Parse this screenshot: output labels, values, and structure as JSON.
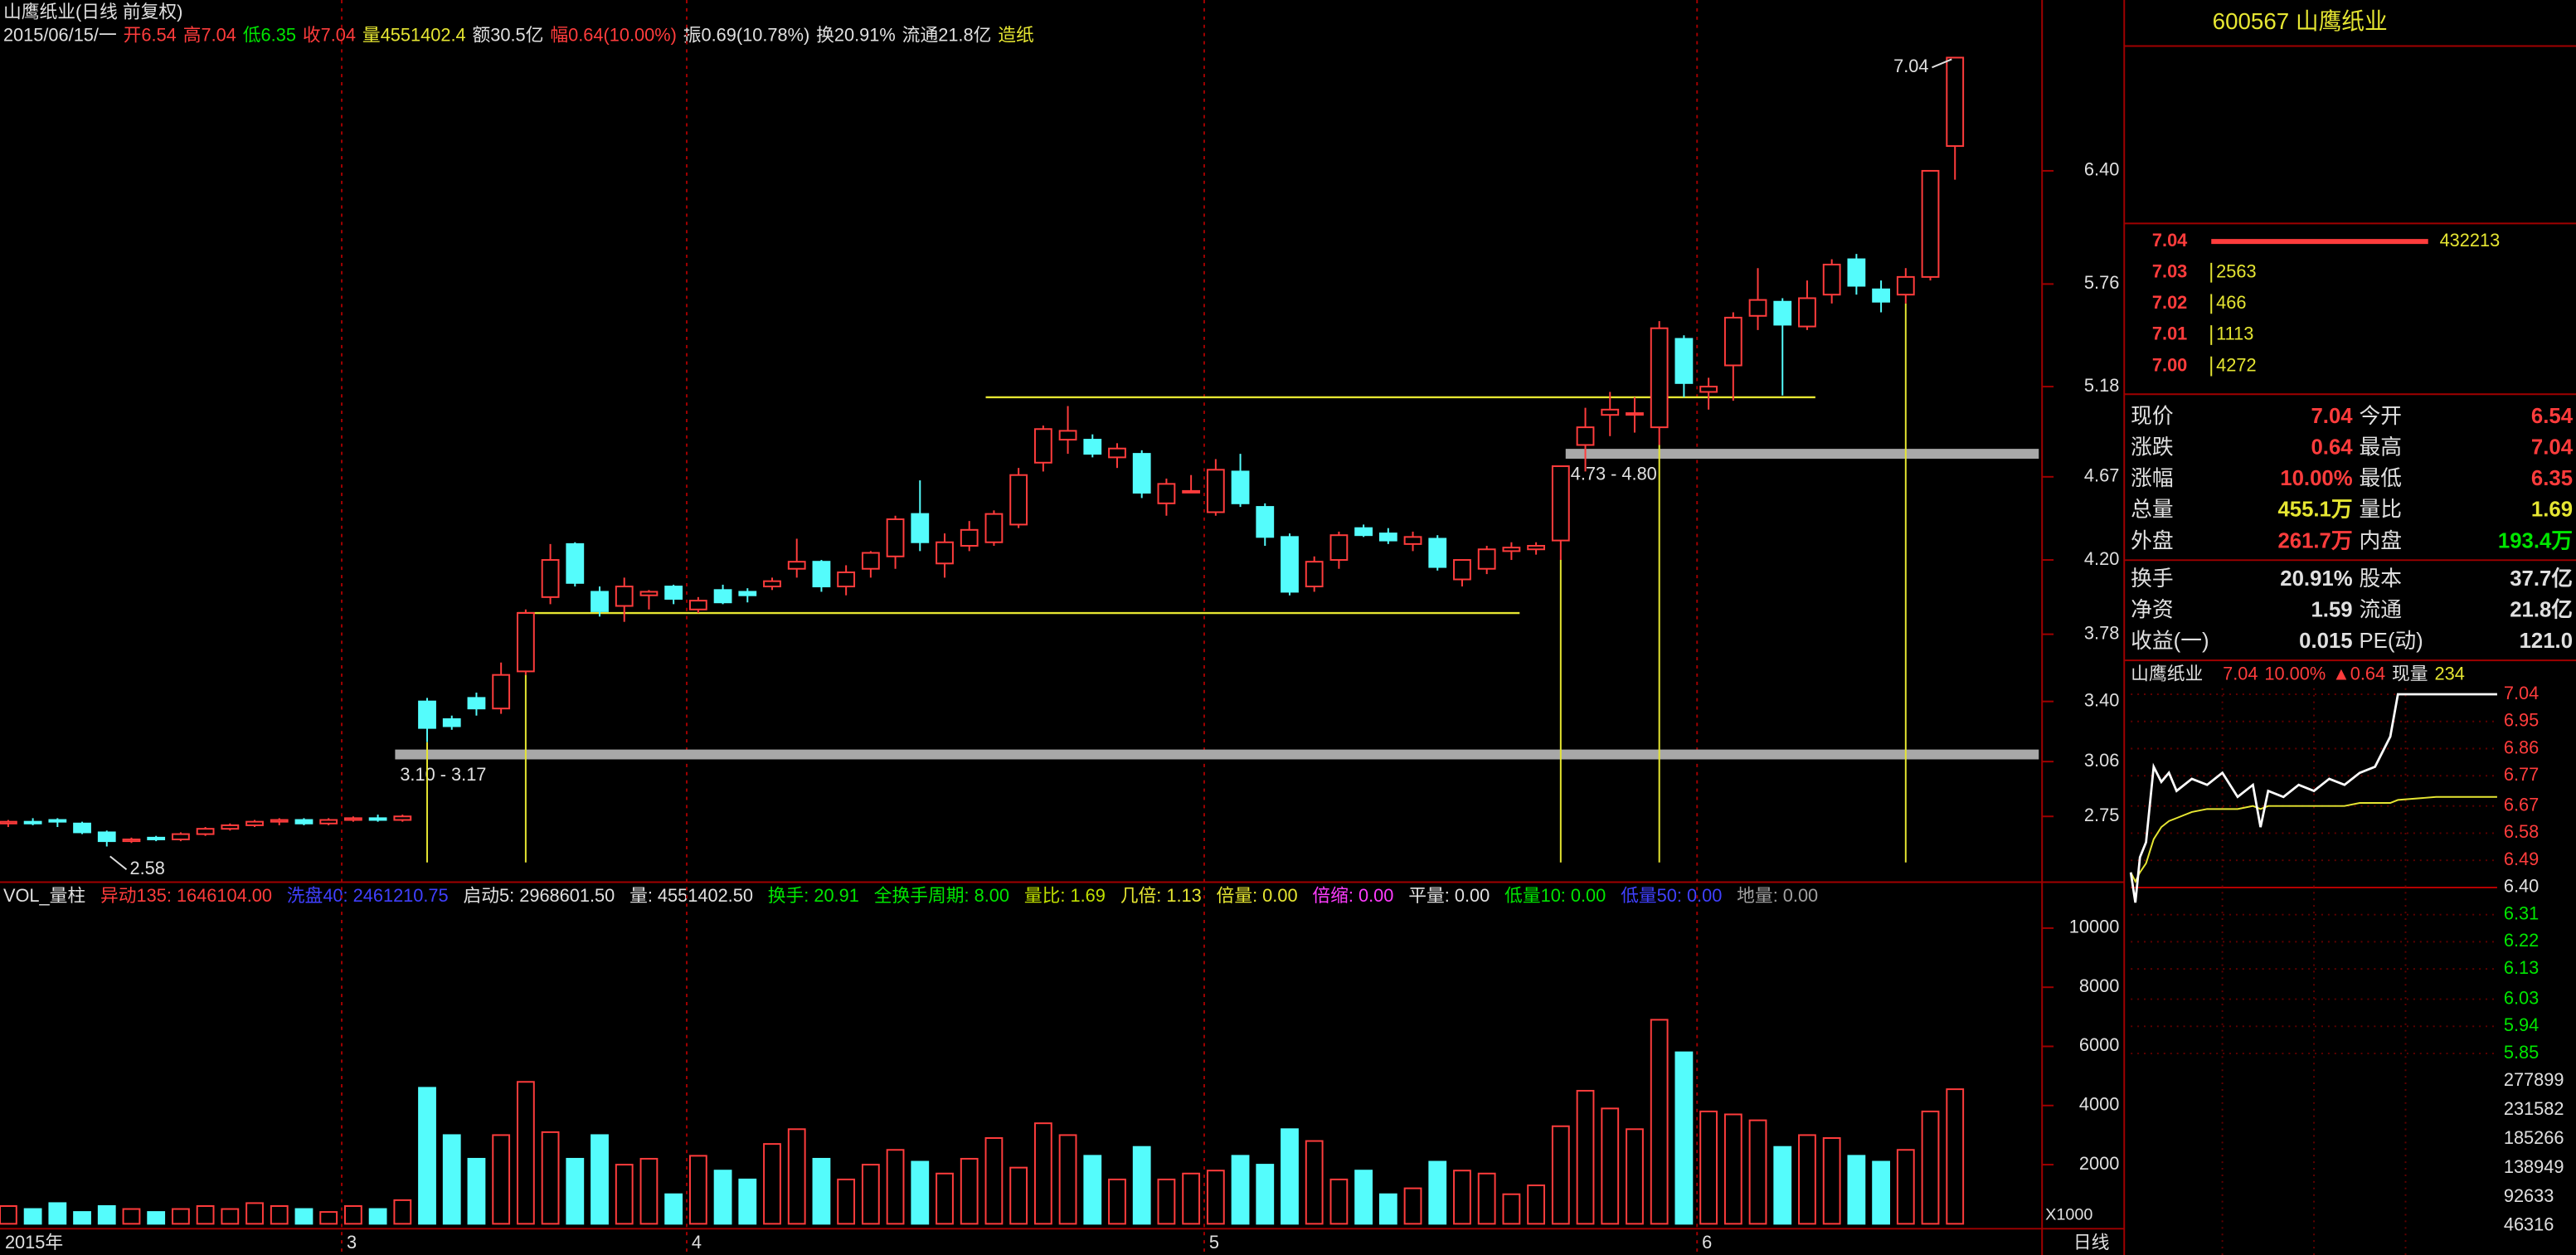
{
  "header": {
    "title": "山鹰纸业(日线 前复权)",
    "items": [
      {
        "text": "2015/06/15/一",
        "color": "#e0e0e0"
      },
      {
        "text": "开6.54",
        "color": "#ff3c3c"
      },
      {
        "text": "高7.04",
        "color": "#ff3c3c"
      },
      {
        "text": "低6.35",
        "color": "#00e600"
      },
      {
        "text": "收7.04",
        "color": "#ff3c3c"
      },
      {
        "text": "量4551402.4",
        "color": "#e6e632"
      },
      {
        "text": "额30.5亿",
        "color": "#e0e0e0"
      },
      {
        "text": "幅0.64(10.00%)",
        "color": "#ff3c3c"
      },
      {
        "text": "振0.69(10.78%)",
        "color": "#e0e0e0"
      },
      {
        "text": "换20.91%",
        "color": "#e0e0e0"
      },
      {
        "text": "流通21.8亿",
        "color": "#e0e0e0"
      },
      {
        "text": "造纸",
        "color": "#e6e632"
      }
    ]
  },
  "indicators": {
    "items": [
      {
        "text": "VOL_量柱",
        "color": "#e0e0e0"
      },
      {
        "text": "异动135: 1646104.00",
        "color": "#ff3c3c"
      },
      {
        "text": "洗盘40: 2461210.75",
        "color": "#4040ff"
      },
      {
        "text": "启动5: 2968601.50",
        "color": "#e0e0e0"
      },
      {
        "text": "量: 4551402.50",
        "color": "#e0e0e0"
      },
      {
        "text": "换手: 20.91",
        "color": "#00e600"
      },
      {
        "text": "全换手周期: 8.00",
        "color": "#00e600"
      },
      {
        "text": "量比: 1.69",
        "color": "#c0e000"
      },
      {
        "text": "几倍: 1.13",
        "color": "#e6e632"
      },
      {
        "text": "倍量: 0.00",
        "color": "#e6e632"
      },
      {
        "text": "倍缩: 0.00",
        "color": "#ff3cff"
      },
      {
        "text": "平量: 0.00",
        "color": "#e0e0e0"
      },
      {
        "text": "低量10: 0.00",
        "color": "#00e600"
      },
      {
        "text": "低量50: 0.00",
        "color": "#4040ff"
      },
      {
        "text": "地量: 0.00",
        "color": "#a0a0a0"
      }
    ]
  },
  "chart_data": [
    {
      "type": "candlestick",
      "open": [
        2.71,
        2.72,
        2.73,
        2.71,
        2.66,
        2.61,
        2.63,
        2.62,
        2.65,
        2.68,
        2.7,
        2.72,
        2.73,
        2.71,
        2.73,
        2.74,
        2.73,
        3.4,
        3.3,
        3.42,
        3.36,
        3.57,
        3.99,
        4.29,
        4.02,
        3.94,
        4.0,
        4.05,
        3.92,
        4.03,
        4.02,
        4.05,
        4.15,
        4.19,
        4.05,
        4.15,
        4.22,
        4.46,
        4.18,
        4.28,
        4.3,
        4.4,
        4.75,
        4.88,
        4.88,
        4.78,
        4.8,
        4.52,
        4.59,
        4.47,
        4.7,
        4.5,
        4.33,
        4.05,
        4.2,
        4.38,
        4.35,
        4.29,
        4.32,
        4.09,
        4.15,
        4.25,
        4.26,
        4.31,
        4.85,
        5.02,
        5.03,
        4.95,
        5.45,
        5.15,
        5.3,
        5.58,
        5.66,
        5.52,
        5.7,
        5.9,
        5.73,
        5.7,
        5.8,
        6.54
      ],
      "high": [
        2.73,
        2.74,
        2.74,
        2.72,
        2.67,
        2.63,
        2.64,
        2.66,
        2.69,
        2.71,
        2.73,
        2.74,
        2.74,
        2.74,
        2.75,
        2.76,
        2.76,
        3.42,
        3.32,
        3.45,
        3.62,
        3.92,
        4.29,
        4.3,
        4.05,
        4.1,
        4.03,
        4.06,
        3.99,
        4.06,
        4.04,
        4.1,
        4.32,
        4.2,
        4.17,
        4.25,
        4.45,
        4.65,
        4.35,
        4.42,
        4.48,
        4.72,
        4.96,
        5.07,
        4.91,
        4.86,
        4.82,
        4.66,
        4.68,
        4.77,
        4.8,
        4.52,
        4.35,
        4.22,
        4.36,
        4.4,
        4.38,
        4.36,
        4.34,
        4.2,
        4.28,
        4.3,
        4.3,
        4.73,
        5.06,
        5.15,
        5.12,
        5.55,
        5.47,
        5.23,
        5.6,
        5.85,
        5.68,
        5.78,
        5.9,
        5.93,
        5.78,
        5.85,
        6.4,
        7.04
      ],
      "low": [
        2.69,
        2.7,
        2.69,
        2.65,
        2.58,
        2.6,
        2.61,
        2.61,
        2.64,
        2.67,
        2.69,
        2.7,
        2.7,
        2.7,
        2.72,
        2.72,
        2.72,
        3.17,
        3.24,
        3.32,
        3.33,
        3.55,
        3.95,
        4.05,
        3.88,
        3.85,
        3.92,
        3.95,
        3.9,
        3.95,
        3.96,
        4.03,
        4.1,
        4.02,
        4.0,
        4.1,
        4.15,
        4.25,
        4.1,
        4.25,
        4.28,
        4.38,
        4.7,
        4.8,
        4.78,
        4.72,
        4.55,
        4.45,
        4.58,
        4.45,
        4.5,
        4.28,
        4.0,
        4.02,
        4.15,
        4.33,
        4.29,
        4.25,
        4.14,
        4.05,
        4.12,
        4.2,
        4.23,
        4.2,
        4.7,
        4.9,
        4.92,
        4.85,
        5.12,
        5.05,
        5.1,
        5.5,
        5.13,
        5.5,
        5.65,
        5.7,
        5.6,
        5.65,
        5.78,
        6.35
      ],
      "close": [
        2.72,
        2.71,
        2.72,
        2.66,
        2.61,
        2.62,
        2.62,
        2.65,
        2.68,
        2.7,
        2.72,
        2.73,
        2.71,
        2.73,
        2.74,
        2.73,
        2.75,
        3.25,
        3.26,
        3.36,
        3.55,
        3.9,
        4.2,
        4.07,
        3.91,
        4.05,
        4.02,
        3.98,
        3.97,
        3.96,
        4.0,
        4.08,
        4.19,
        4.05,
        4.13,
        4.24,
        4.43,
        4.3,
        4.3,
        4.37,
        4.46,
        4.68,
        4.94,
        4.93,
        4.8,
        4.83,
        4.58,
        4.63,
        4.59,
        4.71,
        4.52,
        4.33,
        4.02,
        4.19,
        4.34,
        4.34,
        4.31,
        4.33,
        4.16,
        4.2,
        4.26,
        4.27,
        4.28,
        4.73,
        4.95,
        5.05,
        5.03,
        5.51,
        5.2,
        5.18,
        5.57,
        5.67,
        5.53,
        5.68,
        5.87,
        5.75,
        5.66,
        5.8,
        6.4,
        7.04
      ],
      "up_color": "#ff3c3c",
      "down_color": "#54fcfc",
      "ylim": [
        2.49,
        7.18
      ],
      "yticks": [
        2.75,
        3.06,
        {
          "value": 3.4,
          "label": "3.40"
        },
        3.78,
        {
          "value": 4.2,
          "label": "4.20"
        },
        4.67,
        5.18,
        5.76,
        {
          "value": 6.4,
          "label": "6.40"
        }
      ],
      "xticks": [
        {
          "value": 0,
          "label": "2015年"
        },
        {
          "value": 14,
          "label": "3"
        },
        {
          "value": 28,
          "label": "4"
        },
        {
          "value": 49,
          "label": "5"
        },
        {
          "value": 69,
          "label": "6"
        }
      ],
      "levels": [
        3.9,
        5.12
      ],
      "level_color": "#e6e632",
      "zones": [
        {
          "label": "3.10 - 3.17",
          "value": 3.1
        },
        {
          "label": "4.73 - 4.80",
          "value": 4.8
        }
      ],
      "zone_color": "#a8a8a8",
      "max_label": 7.04,
      "min_label": 2.58
    },
    {
      "type": "bar",
      "values": [
        600,
        500,
        700,
        400,
        600,
        500,
        400,
        500,
        600,
        500,
        700,
        600,
        500,
        400,
        600,
        500,
        800,
        4600,
        3000,
        2200,
        3000,
        4800,
        3100,
        2200,
        3000,
        2000,
        2200,
        1000,
        2300,
        1800,
        1500,
        2700,
        3200,
        2200,
        1500,
        2000,
        2500,
        2100,
        1700,
        2200,
        2900,
        1900,
        3400,
        3000,
        2300,
        1500,
        2600,
        1500,
        1700,
        1800,
        2300,
        2000,
        3200,
        2800,
        1500,
        1800,
        1000,
        1200,
        2100,
        1800,
        1700,
        1000,
        1300,
        3300,
        4500,
        3900,
        3200,
        6900,
        5800,
        3800,
        3700,
        3500,
        2600,
        3000,
        2900,
        2300,
        2100,
        2500,
        3800,
        4551.4
      ],
      "ylim": [
        0,
        11000
      ],
      "yticks": [
        2000,
        4000,
        6000,
        8000,
        10000
      ],
      "unit_label": "X1000"
    },
    {
      "type": "line",
      "title": "山鹰纸业",
      "items": [
        {
          "text": "7.04",
          "color": "#ff3c3c"
        },
        {
          "text": "10.00%",
          "color": "#ff3c3c"
        },
        {
          "text": "▲0.64",
          "color": "#ff3c3c"
        },
        {
          "text": "现量",
          "color": "#e0e0e0"
        },
        {
          "text": "234",
          "color": "#e6e632"
        }
      ],
      "x": [
        0,
        3,
        6,
        10,
        15,
        20,
        25,
        30,
        40,
        50,
        60,
        70,
        80,
        85,
        90,
        100,
        110,
        120,
        130,
        140,
        150,
        160,
        170,
        175,
        200,
        240
      ],
      "series": [
        {
          "color": "#ffffff",
          "values": [
            6.45,
            6.35,
            6.5,
            6.55,
            6.8,
            6.75,
            6.78,
            6.72,
            6.76,
            6.74,
            6.78,
            6.7,
            6.74,
            6.6,
            6.72,
            6.7,
            6.74,
            6.72,
            6.76,
            6.74,
            6.78,
            6.8,
            6.9,
            7.04,
            7.04,
            7.04
          ]
        },
        {
          "color": "#e6e632",
          "values": [
            6.45,
            6.42,
            6.45,
            6.48,
            6.56,
            6.6,
            6.62,
            6.63,
            6.65,
            6.66,
            6.66,
            6.66,
            6.67,
            6.66,
            6.67,
            6.67,
            6.67,
            6.67,
            6.67,
            6.67,
            6.68,
            6.68,
            6.68,
            6.69,
            6.7,
            6.7
          ]
        }
      ],
      "xlim": [
        0,
        240
      ],
      "ylim": [
        5.83,
        7.06
      ],
      "yticks": [
        7.04,
        6.95,
        6.86,
        6.77,
        6.67,
        6.58,
        6.49,
        {
          "value": 6.4,
          "label": "6.40"
        },
        6.31,
        6.22,
        6.13,
        6.03,
        5.94,
        5.85
      ],
      "vlim": [
        0,
        306700
      ],
      "vticks": [
        277899,
        231582,
        185266,
        138949,
        92633,
        46316
      ]
    }
  ],
  "period_label": "日线",
  "quote": {
    "title": "600567 山鹰纸业",
    "book": [
      {
        "price": "7.04",
        "volume": "432213"
      },
      {
        "price": "7.03",
        "volume": "2563"
      },
      {
        "price": "7.02",
        "volume": "466"
      },
      {
        "price": "7.01",
        "volume": "1113"
      },
      {
        "price": "7.00",
        "volume": "4272"
      }
    ],
    "rows": [
      {
        "cells": [
          "现价",
          "7.04",
          "今开",
          "6.54"
        ],
        "colors": [
          "#ff3c3c",
          "#ff3c3c"
        ]
      },
      {
        "cells": [
          "涨跌",
          "0.64",
          "最高",
          "7.04"
        ],
        "colors": [
          "#ff3c3c",
          "#ff3c3c"
        ]
      },
      {
        "cells": [
          "涨幅",
          "10.00%",
          "最低",
          "6.35"
        ],
        "colors": [
          "#ff3c3c",
          "#ff3c3c"
        ]
      },
      {
        "cells": [
          "总量",
          "455.1万",
          "量比",
          "1.69"
        ],
        "colors": [
          "#e6e632",
          "#e6e632"
        ]
      },
      {
        "cells": [
          "外盘",
          "261.7万",
          "内盘",
          "193.4万"
        ],
        "colors": [
          "#ff3c3c",
          "#00e600"
        ]
      },
      {
        "cells": [
          "换手",
          "20.91%",
          "股本",
          "37.7亿"
        ],
        "colors": [
          "#e0e0e0",
          "#e0e0e0"
        ]
      },
      {
        "cells": [
          "净资",
          "1.59",
          "流通",
          "21.8亿"
        ],
        "colors": [
          "#e0e0e0",
          "#e0e0e0"
        ]
      },
      {
        "cells": [
          "收益(一)",
          "0.015",
          "PE(动)",
          "121.0"
        ],
        "colors": [
          "#e0e0e0",
          "#e0e0e0"
        ]
      }
    ]
  }
}
